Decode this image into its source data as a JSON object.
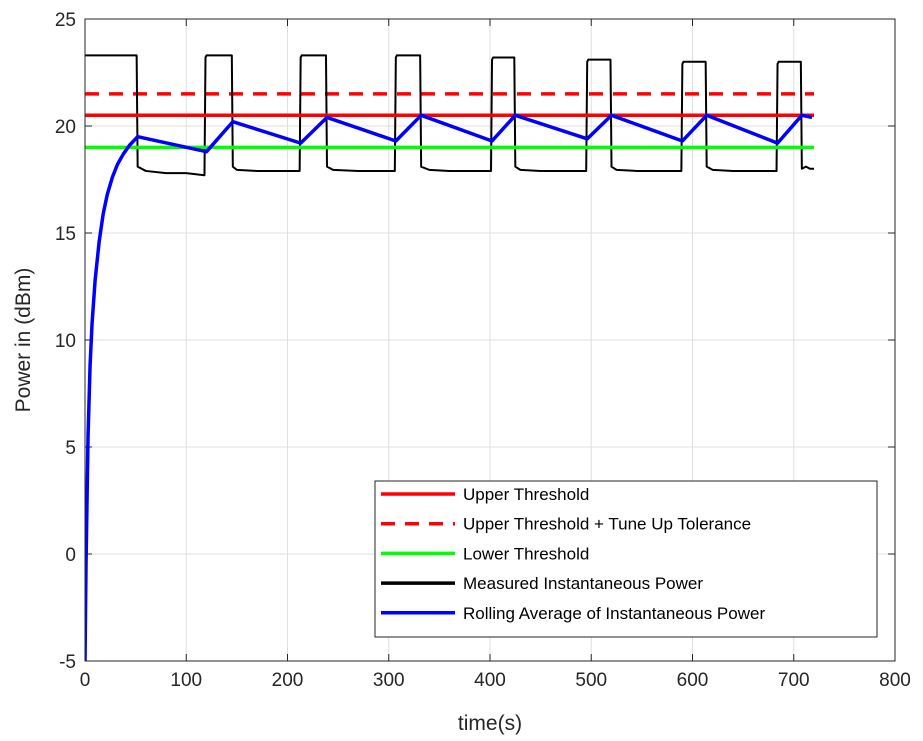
{
  "chart_data": {
    "type": "line",
    "xlabel": "time(s)",
    "ylabel": "Power in (dBm)",
    "xlim": [
      0,
      800
    ],
    "ylim": [
      -5,
      25
    ],
    "xticks": [
      0,
      100,
      200,
      300,
      400,
      500,
      600,
      700,
      800
    ],
    "yticks": [
      -5,
      0,
      5,
      10,
      15,
      20,
      25
    ],
    "grid": true,
    "legend_position": "bottom-right",
    "series": [
      {
        "name": "Upper Threshold",
        "color": "#ff0000",
        "line_style": "solid",
        "x": [
          0,
          720
        ],
        "y": [
          20.5,
          20.5
        ]
      },
      {
        "name": "Upper Threshold + Tune Up Tolerance",
        "color": "#ff0000",
        "line_style": "dashed",
        "x": [
          0,
          720
        ],
        "y": [
          21.5,
          21.5
        ]
      },
      {
        "name": "Lower Threshold",
        "color": "#00ff00",
        "line_style": "solid",
        "x": [
          0,
          720
        ],
        "y": [
          19.0,
          19.0
        ]
      },
      {
        "name": "Measured Instantaneous Power",
        "color": "#000000",
        "line_style": "solid",
        "x": [
          0,
          51,
          52,
          60,
          80,
          100,
          118,
          119,
          120,
          145,
          146,
          150,
          170,
          200,
          212,
          213,
          214,
          238,
          239,
          245,
          270,
          300,
          306,
          307,
          308,
          331,
          332,
          340,
          360,
          390,
          401,
          402,
          403,
          424,
          425,
          430,
          450,
          480,
          495,
          496,
          497,
          519,
          520,
          525,
          545,
          570,
          589,
          590,
          591,
          613,
          614,
          620,
          640,
          670,
          683,
          684,
          685,
          707,
          708,
          712,
          716,
          720
        ],
        "y": [
          23.3,
          23.3,
          18.1,
          17.9,
          17.8,
          17.8,
          17.7,
          23.2,
          23.3,
          23.3,
          18.1,
          17.95,
          17.9,
          17.9,
          17.9,
          23.2,
          23.3,
          23.3,
          18.1,
          17.95,
          17.9,
          17.9,
          17.9,
          23.2,
          23.3,
          23.3,
          18.1,
          17.95,
          17.9,
          17.9,
          17.9,
          23.1,
          23.2,
          23.2,
          18.1,
          17.95,
          17.9,
          17.9,
          17.9,
          23.0,
          23.1,
          23.1,
          18.1,
          17.95,
          17.9,
          17.9,
          17.9,
          22.9,
          23.0,
          23.0,
          18.1,
          17.95,
          17.9,
          17.9,
          17.9,
          22.9,
          23.0,
          23.0,
          18.0,
          18.1,
          18.0,
          18.0
        ]
      },
      {
        "name": "Rolling Average of Instantaneous Power",
        "color": "#0000ff",
        "line_style": "solid",
        "x": [
          0,
          1,
          2,
          3,
          5,
          7,
          10,
          14,
          18,
          22,
          27,
          32,
          38,
          44,
          52,
          120,
          146,
          213,
          239,
          307,
          332,
          402,
          425,
          496,
          520,
          590,
          614,
          684,
          708,
          718
        ],
        "y": [
          -5,
          -0.5,
          2.5,
          5.5,
          8.8,
          10.8,
          12.8,
          14.6,
          15.9,
          16.8,
          17.6,
          18.2,
          18.7,
          19.1,
          19.5,
          18.8,
          20.2,
          19.2,
          20.4,
          19.3,
          20.5,
          19.3,
          20.5,
          19.4,
          20.5,
          19.3,
          20.5,
          19.2,
          20.5,
          20.4
        ]
      }
    ]
  }
}
